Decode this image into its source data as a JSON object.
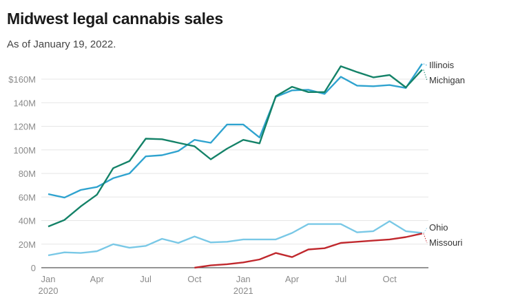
{
  "chart_data": {
    "type": "line",
    "title": "Midwest legal cannabis sales",
    "subtitle": "As of January 19, 2022.",
    "xlabel": "",
    "ylabel": "",
    "ylim": [
      0,
      170
    ],
    "yticks": [
      0,
      20,
      40,
      60,
      80,
      100,
      120,
      140,
      160
    ],
    "ytick_labels": [
      "0",
      "20M",
      "40M",
      "60M",
      "80M",
      "100M",
      "120M",
      "140M",
      "$160M"
    ],
    "x": [
      "2020-01",
      "2020-02",
      "2020-03",
      "2020-04",
      "2020-05",
      "2020-06",
      "2020-07",
      "2020-08",
      "2020-09",
      "2020-10",
      "2020-11",
      "2020-12",
      "2021-01",
      "2021-02",
      "2021-03",
      "2021-04",
      "2021-05",
      "2021-06",
      "2021-07",
      "2021-08",
      "2021-09",
      "2021-10",
      "2021-11",
      "2021-12"
    ],
    "xticks": [
      {
        "index": 0,
        "label": "Jan",
        "year": "2020"
      },
      {
        "index": 3,
        "label": "Apr",
        "year": ""
      },
      {
        "index": 6,
        "label": "Jul",
        "year": ""
      },
      {
        "index": 9,
        "label": "Oct",
        "year": ""
      },
      {
        "index": 12,
        "label": "Jan",
        "year": "2021"
      },
      {
        "index": 15,
        "label": "Apr",
        "year": ""
      },
      {
        "index": 18,
        "label": "Jul",
        "year": ""
      },
      {
        "index": 21,
        "label": "Oct",
        "year": ""
      }
    ],
    "grid": true,
    "legend": "direct-labels-right",
    "units": "millions of dollars",
    "series": [
      {
        "name": "Illinois",
        "color": "#2fa3cf",
        "start_index": 0,
        "values": [
          62.5,
          59.5,
          66,
          68.5,
          76,
          80,
          94.5,
          95.5,
          99,
          108.5,
          106,
          121.5,
          121.5,
          110.5,
          145,
          150.5,
          151,
          147.5,
          162,
          154.5,
          154,
          155,
          152.5,
          173
        ]
      },
      {
        "name": "Michigan",
        "color": "#148268",
        "start_index": 0,
        "values": [
          35,
          40.5,
          52,
          62,
          84.5,
          90.5,
          109.5,
          109,
          106,
          103,
          92,
          101,
          108.5,
          105.5,
          145.5,
          153.5,
          149,
          149,
          171,
          166,
          161.5,
          163.5,
          153,
          168
        ]
      },
      {
        "name": "Ohio",
        "color": "#79c8e6",
        "start_index": 0,
        "values": [
          10.5,
          13,
          12.5,
          14,
          20,
          17,
          18.5,
          24.5,
          21,
          26.5,
          21.5,
          22,
          24,
          24,
          24,
          29.5,
          37,
          37,
          37,
          30,
          31,
          39.5,
          31,
          29.5
        ]
      },
      {
        "name": "Missouri",
        "color": "#c0282d",
        "start_index": 9,
        "values": [
          0,
          2,
          3,
          4.5,
          7,
          12.5,
          9,
          15.5,
          16.5,
          21,
          22,
          23,
          24,
          26,
          29
        ]
      }
    ]
  }
}
